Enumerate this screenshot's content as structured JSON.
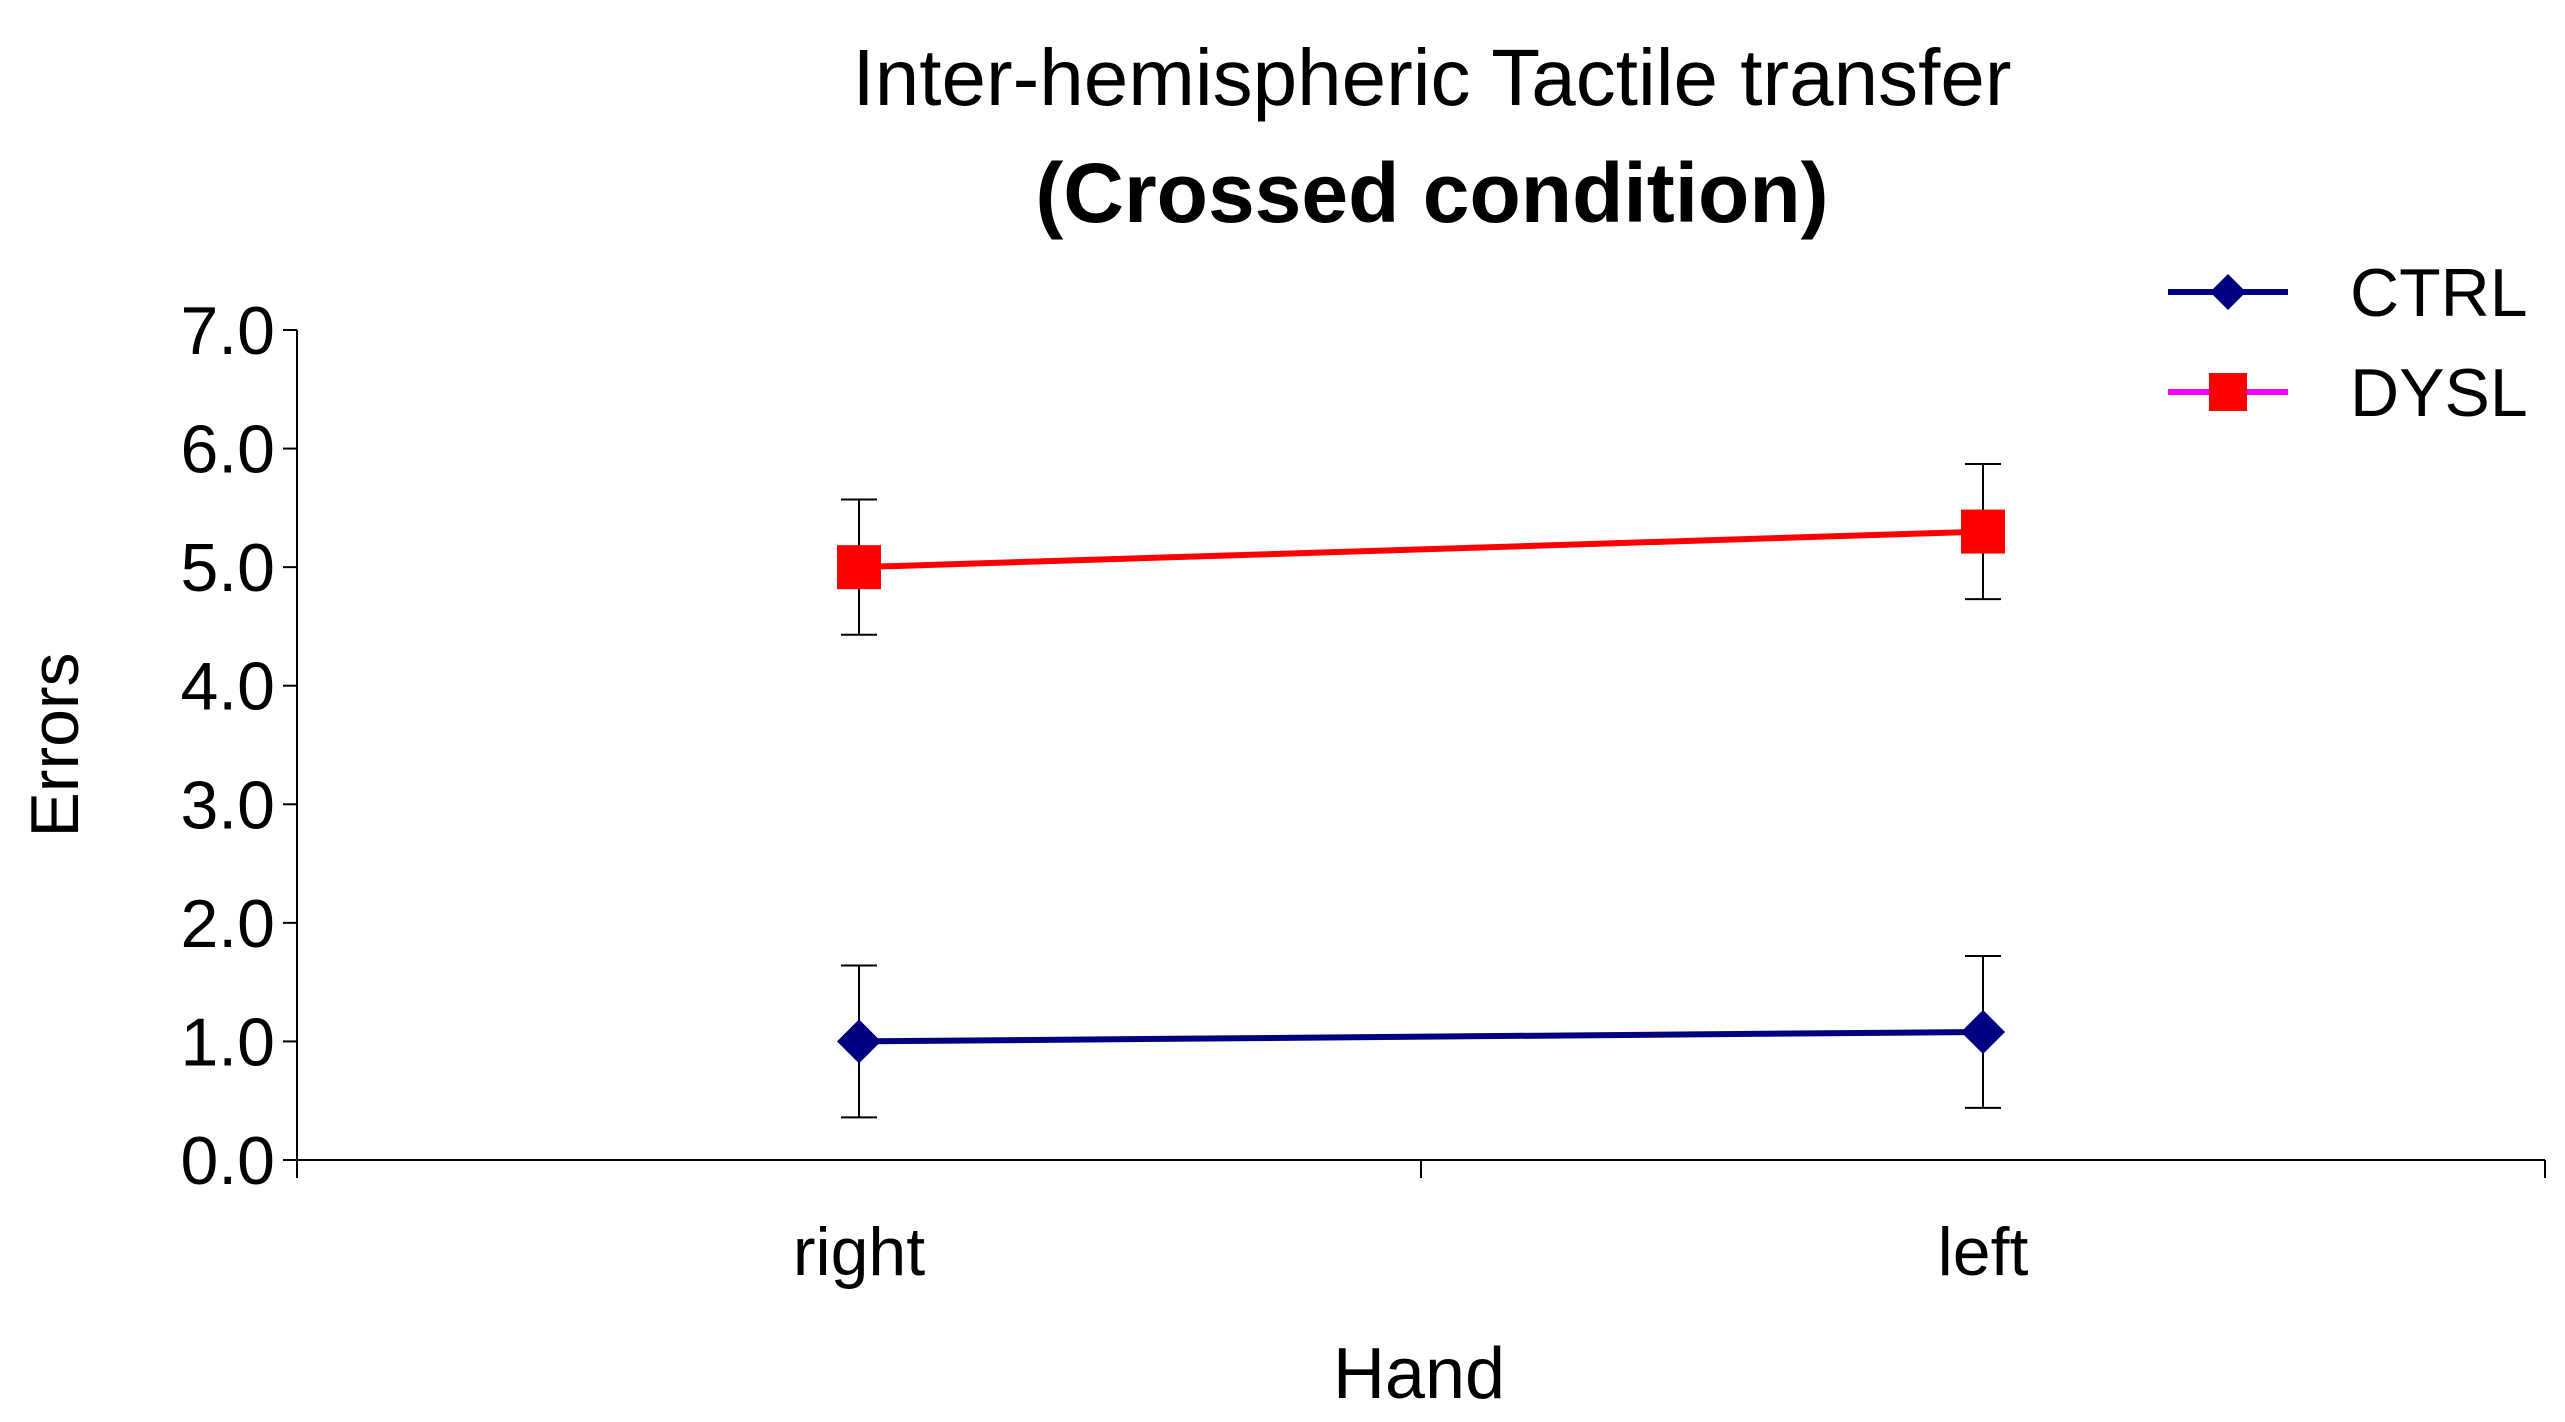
{
  "chart_data": {
    "type": "line",
    "title": "Inter-hemispheric Tactile transfer",
    "subtitle": "(Crossed condition)",
    "xlabel": "Hand",
    "ylabel": "Errors",
    "categories": [
      "right",
      "left"
    ],
    "ylim": [
      0,
      7
    ],
    "yticks": [
      "0.0",
      "1.0",
      "2.0",
      "3.0",
      "4.0",
      "5.0",
      "6.0",
      "7.0"
    ],
    "grid": false,
    "legend_position": "top-right",
    "series": [
      {
        "name": "CTRL",
        "values": [
          1.0,
          1.08
        ],
        "error": [
          0.64,
          0.64
        ],
        "color": "#000080",
        "legend_line_color": "#000080",
        "marker": "diamond"
      },
      {
        "name": "DYSL",
        "values": [
          5.0,
          5.3
        ],
        "error": [
          0.57,
          0.57
        ],
        "color": "#ff0000",
        "legend_line_color": "#ff00ff",
        "marker": "square"
      }
    ]
  }
}
